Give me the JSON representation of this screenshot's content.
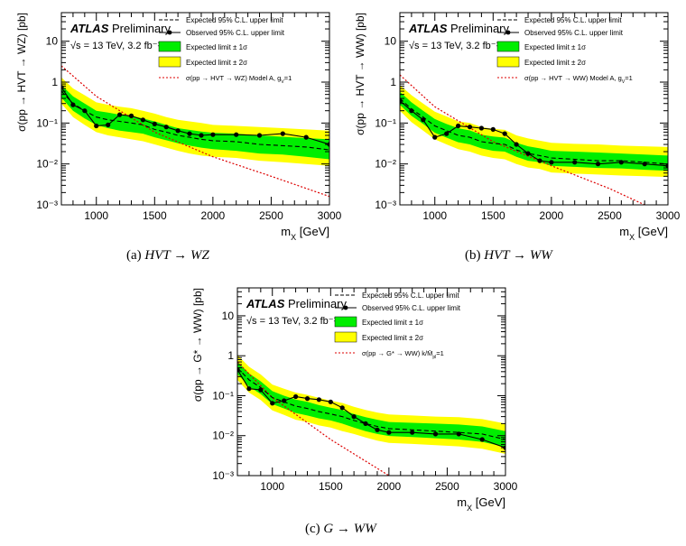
{
  "captions": [
    {
      "label": "(a)",
      "expr": "HVT → WZ"
    },
    {
      "label": "(b)",
      "expr": "HVT → WW"
    },
    {
      "label": "(c)",
      "expr": "G → WW"
    }
  ],
  "colors": {
    "band2": "#ffff00",
    "band1": "#00ee00",
    "expected": "#000000",
    "observed": "#000000",
    "theory": "#dd0000"
  },
  "chart_data": [
    {
      "type": "line",
      "atlas": "ATLAS",
      "atlas_suffix": "Preliminary",
      "energy_label": "√s = 13 TeV, 3.2 fb⁻¹",
      "xlabel": "m_X [GeV]",
      "ylabel": "σ(pp → HVT → WZ) [pb]",
      "xlim": [
        700,
        3000
      ],
      "ylim": [
        0.001,
        50
      ],
      "yscale": "log",
      "xticks": [
        1000,
        1500,
        2000,
        2500,
        3000
      ],
      "yticks": [
        "10⁻³",
        "10⁻²",
        "10⁻¹",
        "1",
        "10"
      ],
      "legend": [
        "Expected 95% C.L. upper limit",
        "Observed 95% C.L. upper limit",
        "Expected limit ± 1σ",
        "Expected limit ± 2σ",
        "σ(pp → HVT → WZ) Model A, g_V=1"
      ],
      "x": [
        700,
        800,
        900,
        1000,
        1100,
        1200,
        1300,
        1400,
        1500,
        1600,
        1700,
        1800,
        1900,
        2000,
        2200,
        2400,
        2600,
        2800,
        3000
      ],
      "observed": [
        0.75,
        0.28,
        0.2,
        0.085,
        0.09,
        0.16,
        0.15,
        0.12,
        0.095,
        0.08,
        0.065,
        0.055,
        0.05,
        0.052,
        0.052,
        0.05,
        0.055,
        0.045,
        0.03
      ],
      "expected": [
        0.6,
        0.3,
        0.2,
        0.14,
        0.12,
        0.11,
        0.1,
        0.09,
        0.07,
        0.06,
        0.05,
        0.045,
        0.04,
        0.037,
        0.035,
        0.03,
        0.028,
        0.026,
        0.022
      ],
      "band1_low": [
        0.42,
        0.2,
        0.13,
        0.09,
        0.075,
        0.065,
        0.06,
        0.055,
        0.045,
        0.038,
        0.032,
        0.028,
        0.025,
        0.023,
        0.021,
        0.018,
        0.017,
        0.015,
        0.013
      ],
      "band1_high": [
        0.85,
        0.45,
        0.3,
        0.2,
        0.18,
        0.16,
        0.15,
        0.13,
        0.11,
        0.09,
        0.075,
        0.068,
        0.062,
        0.058,
        0.055,
        0.05,
        0.046,
        0.043,
        0.04
      ],
      "band2_low": [
        0.3,
        0.14,
        0.09,
        0.06,
        0.05,
        0.045,
        0.04,
        0.036,
        0.03,
        0.025,
        0.021,
        0.018,
        0.016,
        0.015,
        0.014,
        0.012,
        0.011,
        0.01,
        0.009
      ],
      "band2_high": [
        1.3,
        0.7,
        0.48,
        0.32,
        0.28,
        0.25,
        0.23,
        0.2,
        0.17,
        0.14,
        0.12,
        0.11,
        0.1,
        0.09,
        0.085,
        0.08,
        0.075,
        0.07,
        0.065
      ],
      "theory_x": [
        700,
        1000,
        1500,
        2000,
        2500,
        3000
      ],
      "theory_y": [
        2.5,
        0.45,
        0.06,
        0.015,
        0.005,
        0.0016
      ]
    },
    {
      "type": "line",
      "atlas": "ATLAS",
      "atlas_suffix": "Preliminary",
      "energy_label": "√s = 13 TeV, 3.2 fb⁻¹",
      "xlabel": "m_X [GeV]",
      "ylabel": "σ(pp → HVT → WW) [pb]",
      "xlim": [
        700,
        3000
      ],
      "ylim": [
        0.001,
        50
      ],
      "yscale": "log",
      "xticks": [
        1000,
        1500,
        2000,
        2500,
        3000
      ],
      "yticks": [
        "10⁻³",
        "10⁻²",
        "10⁻¹",
        "1",
        "10"
      ],
      "legend": [
        "Expected 95% C.L. upper limit",
        "Observed 95% C.L. upper limit",
        "Expected limit ± 1σ",
        "Expected limit ± 2σ",
        "σ(pp → HVT → WW) Model A, g_V=1"
      ],
      "x": [
        700,
        800,
        900,
        1000,
        1100,
        1200,
        1300,
        1400,
        1500,
        1600,
        1700,
        1800,
        1900,
        2000,
        2200,
        2400,
        2600,
        2800,
        3000
      ],
      "observed": [
        0.35,
        0.2,
        0.12,
        0.045,
        0.055,
        0.085,
        0.08,
        0.075,
        0.07,
        0.055,
        0.03,
        0.018,
        0.012,
        0.011,
        0.011,
        0.01,
        0.011,
        0.01,
        0.009
      ],
      "expected": [
        0.4,
        0.22,
        0.14,
        0.085,
        0.065,
        0.05,
        0.045,
        0.035,
        0.032,
        0.03,
        0.022,
        0.018,
        0.016,
        0.014,
        0.013,
        0.012,
        0.012,
        0.011,
        0.01
      ],
      "band1_low": [
        0.28,
        0.15,
        0.095,
        0.058,
        0.044,
        0.034,
        0.03,
        0.024,
        0.021,
        0.02,
        0.015,
        0.012,
        0.011,
        0.009,
        0.0085,
        0.008,
        0.0078,
        0.0072,
        0.0068
      ],
      "band1_high": [
        0.58,
        0.32,
        0.2,
        0.125,
        0.095,
        0.075,
        0.066,
        0.052,
        0.047,
        0.044,
        0.033,
        0.027,
        0.024,
        0.021,
        0.02,
        0.019,
        0.018,
        0.017,
        0.016
      ],
      "band2_low": [
        0.2,
        0.105,
        0.065,
        0.04,
        0.03,
        0.023,
        0.02,
        0.016,
        0.014,
        0.013,
        0.01,
        0.0082,
        0.0075,
        0.0062,
        0.0058,
        0.0055,
        0.0052,
        0.005,
        0.0048
      ],
      "band2_high": [
        0.85,
        0.48,
        0.3,
        0.19,
        0.145,
        0.11,
        0.1,
        0.08,
        0.072,
        0.068,
        0.05,
        0.042,
        0.037,
        0.033,
        0.031,
        0.03,
        0.028,
        0.027,
        0.026
      ],
      "theory_x": [
        700,
        1000,
        1500,
        2000,
        2500,
        2800
      ],
      "theory_y": [
        1.5,
        0.25,
        0.035,
        0.009,
        0.0025,
        0.001
      ]
    },
    {
      "type": "line",
      "atlas": "ATLAS",
      "atlas_suffix": "Preliminary",
      "energy_label": "√s = 13 TeV, 3.2 fb⁻¹",
      "xlabel": "m_X [GeV]",
      "ylabel": "σ(pp → G* → WW) [pb]",
      "xlim": [
        700,
        3000
      ],
      "ylim": [
        0.001,
        50
      ],
      "yscale": "log",
      "xticks": [
        1000,
        1500,
        2000,
        2500,
        3000
      ],
      "yticks": [
        "10⁻³",
        "10⁻²",
        "10⁻¹",
        "1",
        "10"
      ],
      "legend": [
        "Expected 95% C.L. upper limit",
        "Observed 95% C.L. upper limit",
        "Expected limit ± 1σ",
        "Expected limit ± 2σ",
        "σ(pp → G* → WW) k/M̄_pl=1"
      ],
      "x": [
        700,
        800,
        900,
        1000,
        1100,
        1200,
        1300,
        1400,
        1500,
        1600,
        1700,
        1800,
        1900,
        2000,
        2200,
        2400,
        2600,
        2800,
        3000
      ],
      "observed": [
        0.45,
        0.15,
        0.14,
        0.065,
        0.075,
        0.095,
        0.085,
        0.08,
        0.07,
        0.05,
        0.03,
        0.02,
        0.014,
        0.012,
        0.012,
        0.011,
        0.011,
        0.008,
        0.005
      ],
      "expected": [
        0.5,
        0.25,
        0.16,
        0.09,
        0.07,
        0.055,
        0.048,
        0.04,
        0.035,
        0.03,
        0.024,
        0.02,
        0.017,
        0.015,
        0.014,
        0.013,
        0.012,
        0.011,
        0.008
      ],
      "band1_low": [
        0.35,
        0.17,
        0.11,
        0.062,
        0.048,
        0.037,
        0.032,
        0.027,
        0.024,
        0.02,
        0.016,
        0.013,
        0.011,
        0.0098,
        0.0092,
        0.0086,
        0.008,
        0.007,
        0.0052
      ],
      "band1_high": [
        0.72,
        0.36,
        0.23,
        0.13,
        0.1,
        0.08,
        0.07,
        0.058,
        0.05,
        0.044,
        0.035,
        0.029,
        0.025,
        0.022,
        0.021,
        0.02,
        0.019,
        0.017,
        0.013
      ],
      "band2_low": [
        0.25,
        0.12,
        0.078,
        0.043,
        0.033,
        0.025,
        0.022,
        0.018,
        0.016,
        0.013,
        0.011,
        0.009,
        0.0075,
        0.0066,
        0.0062,
        0.0058,
        0.0054,
        0.0047,
        0.0035
      ],
      "band2_high": [
        1.05,
        0.53,
        0.34,
        0.19,
        0.15,
        0.12,
        0.105,
        0.088,
        0.075,
        0.066,
        0.053,
        0.044,
        0.038,
        0.034,
        0.032,
        0.03,
        0.029,
        0.026,
        0.02
      ],
      "theory_x": [
        700,
        1000,
        1500,
        2000
      ],
      "theory_y": [
        0.7,
        0.09,
        0.008,
        0.001
      ]
    }
  ]
}
